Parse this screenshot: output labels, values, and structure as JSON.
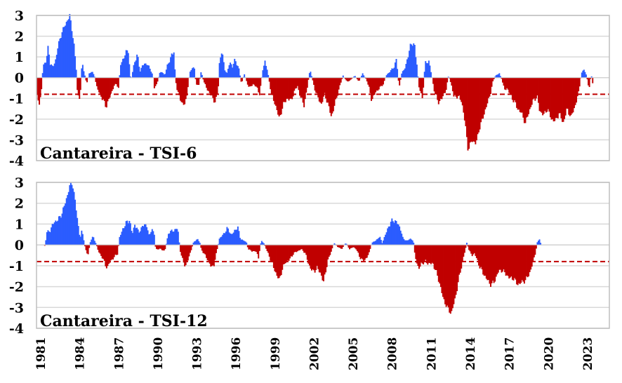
{
  "chart_data": [
    {
      "type": "bar",
      "title": "Cantareira - TSI-6",
      "xlabel": "",
      "ylabel": "",
      "ylim": [
        -4,
        3
      ],
      "yticks": [
        3,
        2,
        1,
        0,
        -1,
        -2,
        -3,
        -4
      ],
      "xlim": [
        1981,
        2025
      ],
      "xticks": [
        "1981",
        "1984",
        "1987",
        "1990",
        "1993",
        "1996",
        "1999",
        "2002",
        "2005",
        "2008",
        "2011",
        "2014",
        "2017",
        "2020",
        "2023"
      ],
      "grid": true,
      "threshold": -0.8,
      "colors": {
        "positive": "#2b5cff",
        "negative": "#c00000",
        "threshold": "#c00000",
        "grid": "#d9d9d9",
        "frame": "#bfbfbf"
      },
      "profile": [
        [
          1981.0,
          -0.8
        ],
        [
          1981.2,
          -1.3
        ],
        [
          1981.35,
          -0.5
        ],
        [
          1981.45,
          0.6
        ],
        [
          1981.7,
          0.8
        ],
        [
          1981.85,
          1.5
        ],
        [
          1982.0,
          0.7
        ],
        [
          1982.2,
          0.5
        ],
        [
          1982.4,
          0.8
        ],
        [
          1982.6,
          1.5
        ],
        [
          1982.9,
          2.2
        ],
        [
          1983.2,
          2.6
        ],
        [
          1983.5,
          3.0
        ],
        [
          1983.8,
          1.8
        ],
        [
          1984.0,
          0.4
        ],
        [
          1984.1,
          -0.8
        ],
        [
          1984.3,
          -1.0
        ],
        [
          1984.45,
          0.8
        ],
        [
          1984.6,
          0.3
        ],
        [
          1984.8,
          -0.3
        ],
        [
          1985.0,
          0.2
        ],
        [
          1985.2,
          0.3
        ],
        [
          1985.4,
          0.1
        ],
        [
          1985.6,
          -0.5
        ],
        [
          1986.0,
          -1.0
        ],
        [
          1986.3,
          -1.4
        ],
        [
          1986.6,
          -0.9
        ],
        [
          1986.9,
          -0.4
        ],
        [
          1987.1,
          -0.3
        ],
        [
          1987.25,
          -0.5
        ],
        [
          1987.4,
          0.6
        ],
        [
          1987.8,
          1.2
        ],
        [
          1988.0,
          1.3
        ],
        [
          1988.2,
          -0.2
        ],
        [
          1988.45,
          0.7
        ],
        [
          1988.7,
          1.1
        ],
        [
          1988.9,
          0.3
        ],
        [
          1989.1,
          0.6
        ],
        [
          1989.4,
          0.7
        ],
        [
          1989.7,
          0.4
        ],
        [
          1989.9,
          0.1
        ],
        [
          1990.0,
          -0.5
        ],
        [
          1990.2,
          -0.3
        ],
        [
          1990.4,
          0.2
        ],
        [
          1990.6,
          0.3
        ],
        [
          1990.8,
          0.1
        ],
        [
          1991.0,
          0.6
        ],
        [
          1991.3,
          1.0
        ],
        [
          1991.5,
          1.3
        ],
        [
          1991.6,
          0.2
        ],
        [
          1991.7,
          -0.5
        ],
        [
          1992.0,
          -1.0
        ],
        [
          1992.2,
          -1.4
        ],
        [
          1992.5,
          -0.9
        ],
        [
          1992.7,
          0.2
        ],
        [
          1992.9,
          0.5
        ],
        [
          1993.1,
          0.4
        ],
        [
          1993.2,
          -0.3
        ],
        [
          1993.4,
          -0.4
        ],
        [
          1993.6,
          0.3
        ],
        [
          1993.8,
          -0.2
        ],
        [
          1994.1,
          -0.6
        ],
        [
          1994.4,
          -0.9
        ],
        [
          1994.7,
          -1.2
        ],
        [
          1994.9,
          -0.6
        ],
        [
          1995.0,
          0.7
        ],
        [
          1995.2,
          1.3
        ],
        [
          1995.4,
          0.4
        ],
        [
          1995.6,
          0.2
        ],
        [
          1995.8,
          0.8
        ],
        [
          1996.0,
          0.5
        ],
        [
          1996.2,
          0.9
        ],
        [
          1996.5,
          0.4
        ],
        [
          1996.7,
          -0.3
        ],
        [
          1996.9,
          0.2
        ],
        [
          1997.1,
          -0.2
        ],
        [
          1997.3,
          -0.5
        ],
        [
          1997.6,
          -0.3
        ],
        [
          1997.9,
          -0.5
        ],
        [
          1998.1,
          -0.8
        ],
        [
          1998.3,
          0.3
        ],
        [
          1998.5,
          0.8
        ],
        [
          1998.7,
          0.3
        ],
        [
          1999.0,
          -0.8
        ],
        [
          1999.4,
          -1.5
        ],
        [
          1999.6,
          -2.0
        ],
        [
          1999.9,
          -1.3
        ],
        [
          2000.2,
          -1.0
        ],
        [
          2000.5,
          -1.1
        ],
        [
          2000.8,
          -0.6
        ],
        [
          2001.0,
          -0.4
        ],
        [
          2001.2,
          -0.9
        ],
        [
          2001.5,
          -1.3
        ],
        [
          2001.7,
          -0.7
        ],
        [
          2001.9,
          0.2
        ],
        [
          2002.0,
          0.3
        ],
        [
          2002.3,
          -0.5
        ],
        [
          2002.6,
          -1.0
        ],
        [
          2002.8,
          -1.3
        ],
        [
          2003.1,
          -0.8
        ],
        [
          2003.4,
          -1.4
        ],
        [
          2003.6,
          -1.9
        ],
        [
          2003.9,
          -1.2
        ],
        [
          2004.2,
          -0.5
        ],
        [
          2004.5,
          0.1
        ],
        [
          2004.8,
          -0.2
        ],
        [
          2005.1,
          -0.1
        ],
        [
          2005.4,
          0.1
        ],
        [
          2005.7,
          -0.2
        ],
        [
          2006.0,
          0.2
        ],
        [
          2006.3,
          -0.1
        ],
        [
          2006.5,
          -0.5
        ],
        [
          2006.7,
          -1.1
        ],
        [
          2007.0,
          -0.7
        ],
        [
          2007.3,
          -0.5
        ],
        [
          2007.6,
          -0.3
        ],
        [
          2007.8,
          0.1
        ],
        [
          2008.1,
          0.3
        ],
        [
          2008.4,
          0.5
        ],
        [
          2008.6,
          0.9
        ],
        [
          2008.8,
          -0.5
        ],
        [
          2009.0,
          0.2
        ],
        [
          2009.2,
          0.4
        ],
        [
          2009.5,
          1.0
        ],
        [
          2009.7,
          1.7
        ],
        [
          2010.0,
          1.5
        ],
        [
          2010.2,
          0.5
        ],
        [
          2010.3,
          -0.4
        ],
        [
          2010.6,
          -1.0
        ],
        [
          2010.8,
          0.7
        ],
        [
          2011.1,
          0.8
        ],
        [
          2011.3,
          0.1
        ],
        [
          2011.5,
          -0.6
        ],
        [
          2011.8,
          -1.2
        ],
        [
          2012.1,
          -1.0
        ],
        [
          2012.4,
          -0.6
        ],
        [
          2012.6,
          0.1
        ],
        [
          2012.8,
          -0.3
        ],
        [
          2013.0,
          -0.9
        ],
        [
          2013.3,
          -0.9
        ],
        [
          2013.6,
          -1.1
        ],
        [
          2013.9,
          -2.3
        ],
        [
          2014.1,
          -3.5
        ],
        [
          2014.4,
          -3.0
        ],
        [
          2014.7,
          -3.2
        ],
        [
          2014.9,
          -2.6
        ],
        [
          2015.2,
          -2.0
        ],
        [
          2015.5,
          -1.4
        ],
        [
          2015.8,
          -0.8
        ],
        [
          2016.0,
          -0.2
        ],
        [
          2016.2,
          0.1
        ],
        [
          2016.5,
          0.2
        ],
        [
          2016.7,
          -0.1
        ],
        [
          2016.9,
          -0.6
        ],
        [
          2017.1,
          -0.5
        ],
        [
          2017.4,
          -0.9
        ],
        [
          2017.7,
          -1.2
        ],
        [
          2017.9,
          -1.5
        ],
        [
          2018.2,
          -1.7
        ],
        [
          2018.5,
          -2.2
        ],
        [
          2018.8,
          -1.6
        ],
        [
          2019.1,
          -1.1
        ],
        [
          2019.4,
          -0.9
        ],
        [
          2019.6,
          -1.6
        ],
        [
          2019.9,
          -1.8
        ],
        [
          2020.2,
          -1.5
        ],
        [
          2020.5,
          -2.0
        ],
        [
          2020.8,
          -2.1
        ],
        [
          2021.1,
          -1.7
        ],
        [
          2021.4,
          -2.2
        ],
        [
          2021.7,
          -1.5
        ],
        [
          2022.0,
          -1.9
        ],
        [
          2022.3,
          -1.4
        ],
        [
          2022.6,
          -0.7
        ],
        [
          2022.8,
          0.2
        ],
        [
          2023.0,
          0.4
        ],
        [
          2023.2,
          0.1
        ],
        [
          2023.4,
          -0.6
        ],
        [
          2023.55,
          0.2
        ],
        [
          2023.7,
          -0.4
        ]
      ]
    },
    {
      "type": "bar",
      "title": "Cantareira - TSI-12",
      "xlabel": "",
      "ylabel": "",
      "ylim": [
        -4,
        3
      ],
      "yticks": [
        3,
        2,
        1,
        0,
        -1,
        -2,
        -3,
        -4
      ],
      "xlim": [
        1981,
        2025
      ],
      "xticks": [
        "1981",
        "1984",
        "1987",
        "1990",
        "1993",
        "1996",
        "1999",
        "2002",
        "2005",
        "2008",
        "2011",
        "2014",
        "2017",
        "2020",
        "2023"
      ],
      "grid": true,
      "threshold": -0.8,
      "colors": {
        "positive": "#2b5cff",
        "negative": "#c00000",
        "threshold": "#c00000",
        "grid": "#d9d9d9",
        "frame": "#bfbfbf"
      },
      "profile": [
        [
          1981.0,
          0.0
        ],
        [
          1981.5,
          0.0
        ],
        [
          1981.6,
          -0.05
        ],
        [
          1981.75,
          0.6
        ],
        [
          1982.0,
          0.7
        ],
        [
          1982.3,
          1.1
        ],
        [
          1982.6,
          1.2
        ],
        [
          1982.9,
          1.5
        ],
        [
          1983.2,
          2.1
        ],
        [
          1983.5,
          2.8
        ],
        [
          1983.7,
          3.0
        ],
        [
          1983.9,
          2.2
        ],
        [
          1984.1,
          1.2
        ],
        [
          1984.3,
          0.3
        ],
        [
          1984.45,
          0.7
        ],
        [
          1984.6,
          0.2
        ],
        [
          1984.7,
          -0.2
        ],
        [
          1984.9,
          -0.5
        ],
        [
          1985.1,
          0.2
        ],
        [
          1985.3,
          0.4
        ],
        [
          1985.5,
          0.1
        ],
        [
          1985.7,
          -0.3
        ],
        [
          1986.0,
          -0.6
        ],
        [
          1986.2,
          -0.9
        ],
        [
          1986.4,
          -1.1
        ],
        [
          1986.6,
          -0.8
        ],
        [
          1986.9,
          -0.6
        ],
        [
          1987.2,
          -0.4
        ],
        [
          1987.3,
          0.3
        ],
        [
          1987.6,
          0.8
        ],
        [
          1987.9,
          1.1
        ],
        [
          1988.1,
          1.2
        ],
        [
          1988.3,
          0.5
        ],
        [
          1988.5,
          1.0
        ],
        [
          1988.8,
          0.6
        ],
        [
          1989.1,
          0.9
        ],
        [
          1989.4,
          1.0
        ],
        [
          1989.6,
          0.4
        ],
        [
          1989.8,
          0.8
        ],
        [
          1990.0,
          0.5
        ],
        [
          1990.1,
          -0.2
        ],
        [
          1990.5,
          -0.2
        ],
        [
          1990.8,
          -0.3
        ],
        [
          1991.1,
          0.6
        ],
        [
          1991.5,
          0.7
        ],
        [
          1991.8,
          0.8
        ],
        [
          1991.9,
          0.2
        ],
        [
          1992.0,
          -0.3
        ],
        [
          1992.2,
          -0.8
        ],
        [
          1992.4,
          -1.0
        ],
        [
          1992.6,
          -0.7
        ],
        [
          1992.8,
          -0.3
        ],
        [
          1993.0,
          0.1
        ],
        [
          1993.3,
          0.3
        ],
        [
          1993.5,
          0.1
        ],
        [
          1993.6,
          -0.2
        ],
        [
          1993.9,
          -0.5
        ],
        [
          1994.1,
          -0.7
        ],
        [
          1994.4,
          -1.1
        ],
        [
          1994.6,
          -0.9
        ],
        [
          1994.8,
          -0.3
        ],
        [
          1995.0,
          0.3
        ],
        [
          1995.3,
          0.5
        ],
        [
          1995.6,
          0.8
        ],
        [
          1995.9,
          0.5
        ],
        [
          1996.1,
          0.6
        ],
        [
          1996.4,
          0.9
        ],
        [
          1996.6,
          0.3
        ],
        [
          1996.9,
          0.2
        ],
        [
          1997.1,
          0.1
        ],
        [
          1997.2,
          -0.2
        ],
        [
          1997.5,
          -0.3
        ],
        [
          1997.8,
          -0.3
        ],
        [
          1998.0,
          -0.6
        ],
        [
          1998.2,
          0.2
        ],
        [
          1998.4,
          0.1
        ],
        [
          1998.6,
          -0.2
        ],
        [
          1999.0,
          -0.8
        ],
        [
          1999.3,
          -1.3
        ],
        [
          1999.6,
          -1.7
        ],
        [
          1999.8,
          -1.2
        ],
        [
          2000.1,
          -0.8
        ],
        [
          2000.4,
          -0.7
        ],
        [
          2000.7,
          -0.4
        ],
        [
          2001.0,
          -0.3
        ],
        [
          2001.3,
          -0.2
        ],
        [
          2001.6,
          -0.4
        ],
        [
          2001.9,
          -1.0
        ],
        [
          2002.2,
          -1.3
        ],
        [
          2002.5,
          -1.1
        ],
        [
          2002.8,
          -1.4
        ],
        [
          2003.0,
          -1.8
        ],
        [
          2003.3,
          -0.8
        ],
        [
          2003.6,
          -0.3
        ],
        [
          2003.8,
          0.1
        ],
        [
          2004.1,
          -0.1
        ],
        [
          2004.4,
          -0.2
        ],
        [
          2004.7,
          0.1
        ],
        [
          2005.0,
          -0.2
        ],
        [
          2005.3,
          -0.1
        ],
        [
          2005.5,
          -0.2
        ],
        [
          2005.8,
          -0.6
        ],
        [
          2006.1,
          -0.8
        ],
        [
          2006.3,
          -0.6
        ],
        [
          2006.5,
          -0.4
        ],
        [
          2006.7,
          0.1
        ],
        [
          2007.0,
          0.2
        ],
        [
          2007.3,
          0.4
        ],
        [
          2007.5,
          0.1
        ],
        [
          2007.7,
          0.4
        ],
        [
          2008.0,
          0.9
        ],
        [
          2008.3,
          1.2
        ],
        [
          2008.6,
          1.1
        ],
        [
          2008.9,
          0.8
        ],
        [
          2009.1,
          0.3
        ],
        [
          2009.4,
          0.2
        ],
        [
          2009.7,
          0.3
        ],
        [
          2009.9,
          0.2
        ],
        [
          2010.0,
          -0.4
        ],
        [
          2010.3,
          -1.2
        ],
        [
          2010.5,
          -0.9
        ],
        [
          2010.8,
          -0.8
        ],
        [
          2011.1,
          -0.9
        ],
        [
          2011.4,
          -0.9
        ],
        [
          2011.6,
          -1.2
        ],
        [
          2011.9,
          -1.8
        ],
        [
          2012.2,
          -2.6
        ],
        [
          2012.5,
          -3.0
        ],
        [
          2012.8,
          -3.3
        ],
        [
          2013.1,
          -2.6
        ],
        [
          2013.4,
          -1.6
        ],
        [
          2013.7,
          -0.7
        ],
        [
          2013.9,
          -0.2
        ],
        [
          2014.0,
          0.1
        ],
        [
          2014.2,
          -0.3
        ],
        [
          2014.4,
          -0.5
        ],
        [
          2014.6,
          -0.4
        ],
        [
          2014.9,
          -0.9
        ],
        [
          2015.2,
          -1.3
        ],
        [
          2015.5,
          -1.6
        ],
        [
          2015.8,
          -1.9
        ],
        [
          2016.1,
          -1.8
        ],
        [
          2016.4,
          -1.3
        ],
        [
          2016.7,
          -1.2
        ],
        [
          2017.0,
          -1.4
        ],
        [
          2017.3,
          -1.6
        ],
        [
          2017.6,
          -1.6
        ],
        [
          2017.9,
          -1.9
        ],
        [
          2018.2,
          -1.8
        ],
        [
          2018.5,
          -1.7
        ],
        [
          2018.8,
          -1.4
        ],
        [
          2019.1,
          -0.8
        ],
        [
          2019.3,
          -0.3
        ],
        [
          2019.4,
          0.1
        ],
        [
          2019.6,
          0.3
        ],
        [
          2019.7,
          0.0
        ]
      ]
    }
  ]
}
